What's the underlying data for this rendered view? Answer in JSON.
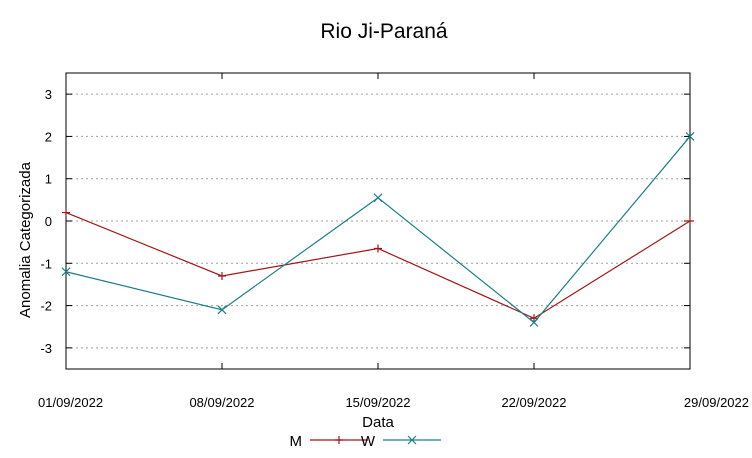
{
  "chart_data": {
    "type": "line",
    "title": "Rio Ji-Paraná",
    "xlabel": "Data",
    "ylabel": "Anomalia Categorizada",
    "categories": [
      "01/09/2022",
      "08/09/2022",
      "15/09/2022",
      "22/09/2022",
      "29/09/2022"
    ],
    "ylim": [
      -3.5,
      3.5
    ],
    "yticks": [
      -3,
      -2,
      -1,
      0,
      1,
      2,
      3
    ],
    "grid": true,
    "legend_position": "bottom-center",
    "series": [
      {
        "name": "M",
        "values": [
          0.2,
          -1.3,
          -0.65,
          -2.3,
          0.0
        ],
        "color": "#a31515",
        "marker": "plus"
      },
      {
        "name": "W",
        "values": [
          -1.2,
          -2.1,
          0.55,
          -2.4,
          2.0
        ],
        "color": "#1a7f87",
        "marker": "x"
      }
    ]
  }
}
